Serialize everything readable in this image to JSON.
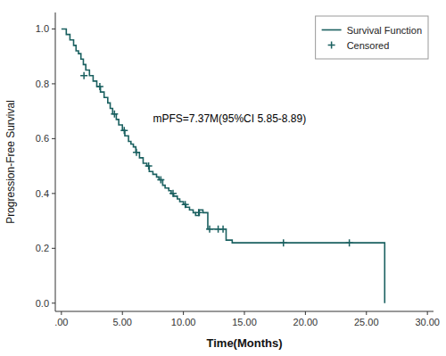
{
  "chart_data": {
    "type": "step",
    "xlabel": "Time(Months)",
    "ylabel": "Progression-Free Survival",
    "xlim": [
      -0.5,
      30.5
    ],
    "ylim": [
      -0.03,
      1.06
    ],
    "xticks": [
      {
        "value": 0.0,
        "label": ".00"
      },
      {
        "value": 5.0,
        "label": "5.00"
      },
      {
        "value": 10.0,
        "label": "10.00"
      },
      {
        "value": 15.0,
        "label": "15.00"
      },
      {
        "value": 20.0,
        "label": "20.00"
      },
      {
        "value": 25.0,
        "label": "25.00"
      },
      {
        "value": 30.0,
        "label": "30.00"
      }
    ],
    "yticks": [
      {
        "value": 0.0,
        "label": "0.0"
      },
      0.2,
      0.4,
      0.6,
      0.8,
      {
        "value": 1.0,
        "label": "1.0"
      }
    ],
    "legend": "upper right",
    "annotations": [
      {
        "text": "mPFS=7.37M(95%CI 5.85-8.89)",
        "x": 7.5,
        "y": 0.66
      }
    ],
    "series": [
      {
        "name": "Survival Function",
        "type": "step",
        "color": "#1a6060",
        "x": [
          0.0,
          0.4,
          0.7,
          1.0,
          1.2,
          1.4,
          1.6,
          1.8,
          2.0,
          2.3,
          2.6,
          2.9,
          3.2,
          3.5,
          3.8,
          4.0,
          4.2,
          4.5,
          4.7,
          5.0,
          5.2,
          5.5,
          5.7,
          5.9,
          6.1,
          6.4,
          6.7,
          7.0,
          7.2,
          7.5,
          7.8,
          8.0,
          8.3,
          8.5,
          8.8,
          9.0,
          9.2,
          9.5,
          9.7,
          10.0,
          10.2,
          10.5,
          10.8,
          11.0,
          11.3,
          11.6,
          12.0,
          12.3,
          12.7,
          13.0,
          13.5,
          14.0,
          14.5,
          18.0,
          23.5,
          26.5,
          26.5
        ],
        "values": [
          1.0,
          0.98,
          0.96,
          0.94,
          0.92,
          0.91,
          0.89,
          0.87,
          0.85,
          0.83,
          0.81,
          0.79,
          0.77,
          0.75,
          0.73,
          0.71,
          0.69,
          0.67,
          0.65,
          0.63,
          0.61,
          0.59,
          0.58,
          0.57,
          0.55,
          0.53,
          0.51,
          0.5,
          0.48,
          0.47,
          0.46,
          0.45,
          0.43,
          0.42,
          0.41,
          0.4,
          0.39,
          0.38,
          0.37,
          0.36,
          0.35,
          0.34,
          0.33,
          0.32,
          0.34,
          0.33,
          0.27,
          0.27,
          0.27,
          0.27,
          0.23,
          0.22,
          0.22,
          0.22,
          0.22,
          0.22,
          0.0
        ]
      },
      {
        "name": "Censored",
        "type": "scatter",
        "marker": "plus",
        "color": "#1a6060",
        "x": [
          1.85,
          3.15,
          4.35,
          5.15,
          6.15,
          7.15,
          8.15,
          9.15,
          10.15,
          11.25,
          12.15,
          12.85,
          13.25,
          18.2,
          23.6
        ],
        "values": [
          0.83,
          0.79,
          0.69,
          0.63,
          0.55,
          0.5,
          0.45,
          0.4,
          0.36,
          0.33,
          0.27,
          0.27,
          0.27,
          0.22,
          0.22
        ]
      }
    ]
  }
}
